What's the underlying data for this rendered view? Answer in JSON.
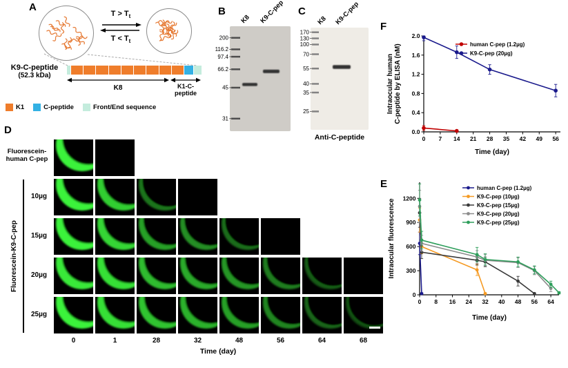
{
  "panel_a": {
    "label": "A",
    "transition_above_main": "T > T",
    "transition_above_sub": "t",
    "transition_below_main": "T < T",
    "transition_below_sub": "t",
    "construct_name": "K9-C-peptide",
    "construct_mass": "(52.3 kDa)",
    "k8_label": "K8",
    "k1_label_line1": "K1-C-",
    "k1_label_line2": "peptide",
    "legend": [
      {
        "label": "K1",
        "color": "#ef7d2b"
      },
      {
        "label": "C-peptide",
        "color": "#33b1e4"
      },
      {
        "label": "Front/End sequence",
        "color": "#c4ecdd"
      }
    ]
  },
  "panel_b": {
    "label": "B",
    "lanes": [
      "K8",
      "K9-C-pep"
    ],
    "markers": [
      "200",
      "116.2",
      "97.4",
      "66.2",
      "45",
      "31"
    ]
  },
  "panel_c": {
    "label": "C",
    "lanes": [
      "K8",
      "K9-C-pep"
    ],
    "markers": [
      "170",
      "130",
      "100",
      "70",
      "55",
      "40",
      "35",
      "25"
    ],
    "caption": "Anti-C-peptide"
  },
  "panel_d": {
    "label": "D",
    "row_human_label": "Fluorescein-human C-pep",
    "group_label": "Fluorescein-K9-C-pep",
    "xlabel": "Time (day)",
    "time_labels": [
      "0",
      "1",
      "28",
      "32",
      "48",
      "56",
      "64",
      "68"
    ],
    "rows": [
      {
        "label": "",
        "intensities": [
          1.0,
          0.0
        ]
      },
      {
        "label": "10µg",
        "intensities": [
          1.0,
          0.8,
          0.3,
          0.0
        ]
      },
      {
        "label": "15µg",
        "intensities": [
          1.0,
          0.85,
          0.55,
          0.45,
          0.25,
          0.0
        ]
      },
      {
        "label": "20µg",
        "intensities": [
          0.95,
          0.9,
          0.7,
          0.6,
          0.5,
          0.35,
          0.15,
          0.0
        ]
      },
      {
        "label": "25µg",
        "intensities": [
          1.0,
          0.9,
          0.75,
          0.65,
          0.55,
          0.4,
          0.2,
          0.07
        ]
      }
    ]
  },
  "chart_data": [
    {
      "panel": "F",
      "type": "line",
      "xlabel": "Time (day)",
      "ylabel": [
        "Intraocular human",
        "C-peptide by ELISA (nM)"
      ],
      "xlim": [
        0,
        58
      ],
      "ylim": [
        0,
        2.0
      ],
      "xticks": [
        0,
        7,
        14,
        21,
        28,
        35,
        42,
        49,
        56
      ],
      "yticks": [
        "0.0",
        "0.4",
        "0.8",
        "1.2",
        "1.6",
        "2.0"
      ],
      "legend_position": "top-right",
      "series": [
        {
          "name": "human C-pep (1.2µg)",
          "color": "#c00000",
          "x": [
            0,
            14
          ],
          "y": [
            0.08,
            0.02
          ],
          "yerr": [
            0.05,
            0.02
          ]
        },
        {
          "name": "K9-C-pep (20µg)",
          "color": "#1a1a8c",
          "x": [
            0,
            14,
            28,
            56
          ],
          "y": [
            1.97,
            1.66,
            1.3,
            0.86
          ],
          "yerr": [
            0.07,
            0.13,
            0.1,
            0.13
          ]
        }
      ]
    },
    {
      "panel": "E",
      "type": "line",
      "xlabel": "Time (day)",
      "ylabel": [
        "Intraocular fluorescence"
      ],
      "xlim": [
        0,
        68
      ],
      "ylim": [
        0,
        1400
      ],
      "xticks": [
        0,
        8,
        16,
        24,
        32,
        40,
        48,
        56,
        64
      ],
      "yticks": [
        "0",
        "300",
        "600",
        "900",
        "1200"
      ],
      "legend_position": "top-right",
      "series": [
        {
          "name": "human C-pep (1.2µg)",
          "color": "#1a1a8c",
          "x": [
            0,
            1
          ],
          "y": [
            640,
            15
          ],
          "yerr": [
            140,
            10
          ]
        },
        {
          "name": "K9-C-pep (10µg)",
          "color": "#f59a23",
          "x": [
            0,
            1,
            28,
            32
          ],
          "y": [
            930,
            600,
            310,
            15
          ],
          "yerr": [
            150,
            90,
            70,
            10
          ]
        },
        {
          "name": "K9-C-pep (15µg)",
          "color": "#3a3a3a",
          "x": [
            0,
            1,
            28,
            32,
            48,
            56
          ],
          "y": [
            1020,
            530,
            430,
            410,
            170,
            15
          ],
          "yerr": [
            180,
            80,
            60,
            60,
            60,
            10
          ]
        },
        {
          "name": "K9-C-pep (20µg)",
          "color": "#8c8c8c",
          "x": [
            0,
            1,
            28,
            32,
            48,
            56,
            64
          ],
          "y": [
            1100,
            640,
            470,
            430,
            400,
            300,
            80
          ],
          "yerr": [
            200,
            100,
            80,
            70,
            60,
            50,
            40
          ]
        },
        {
          "name": "K9-C-pep (25µg)",
          "color": "#2e9e5b",
          "x": [
            0,
            1,
            28,
            32,
            48,
            56,
            64,
            68
          ],
          "y": [
            1180,
            680,
            500,
            440,
            410,
            310,
            130,
            25
          ],
          "yerr": [
            200,
            110,
            90,
            70,
            60,
            50,
            40,
            15
          ]
        }
      ]
    }
  ]
}
